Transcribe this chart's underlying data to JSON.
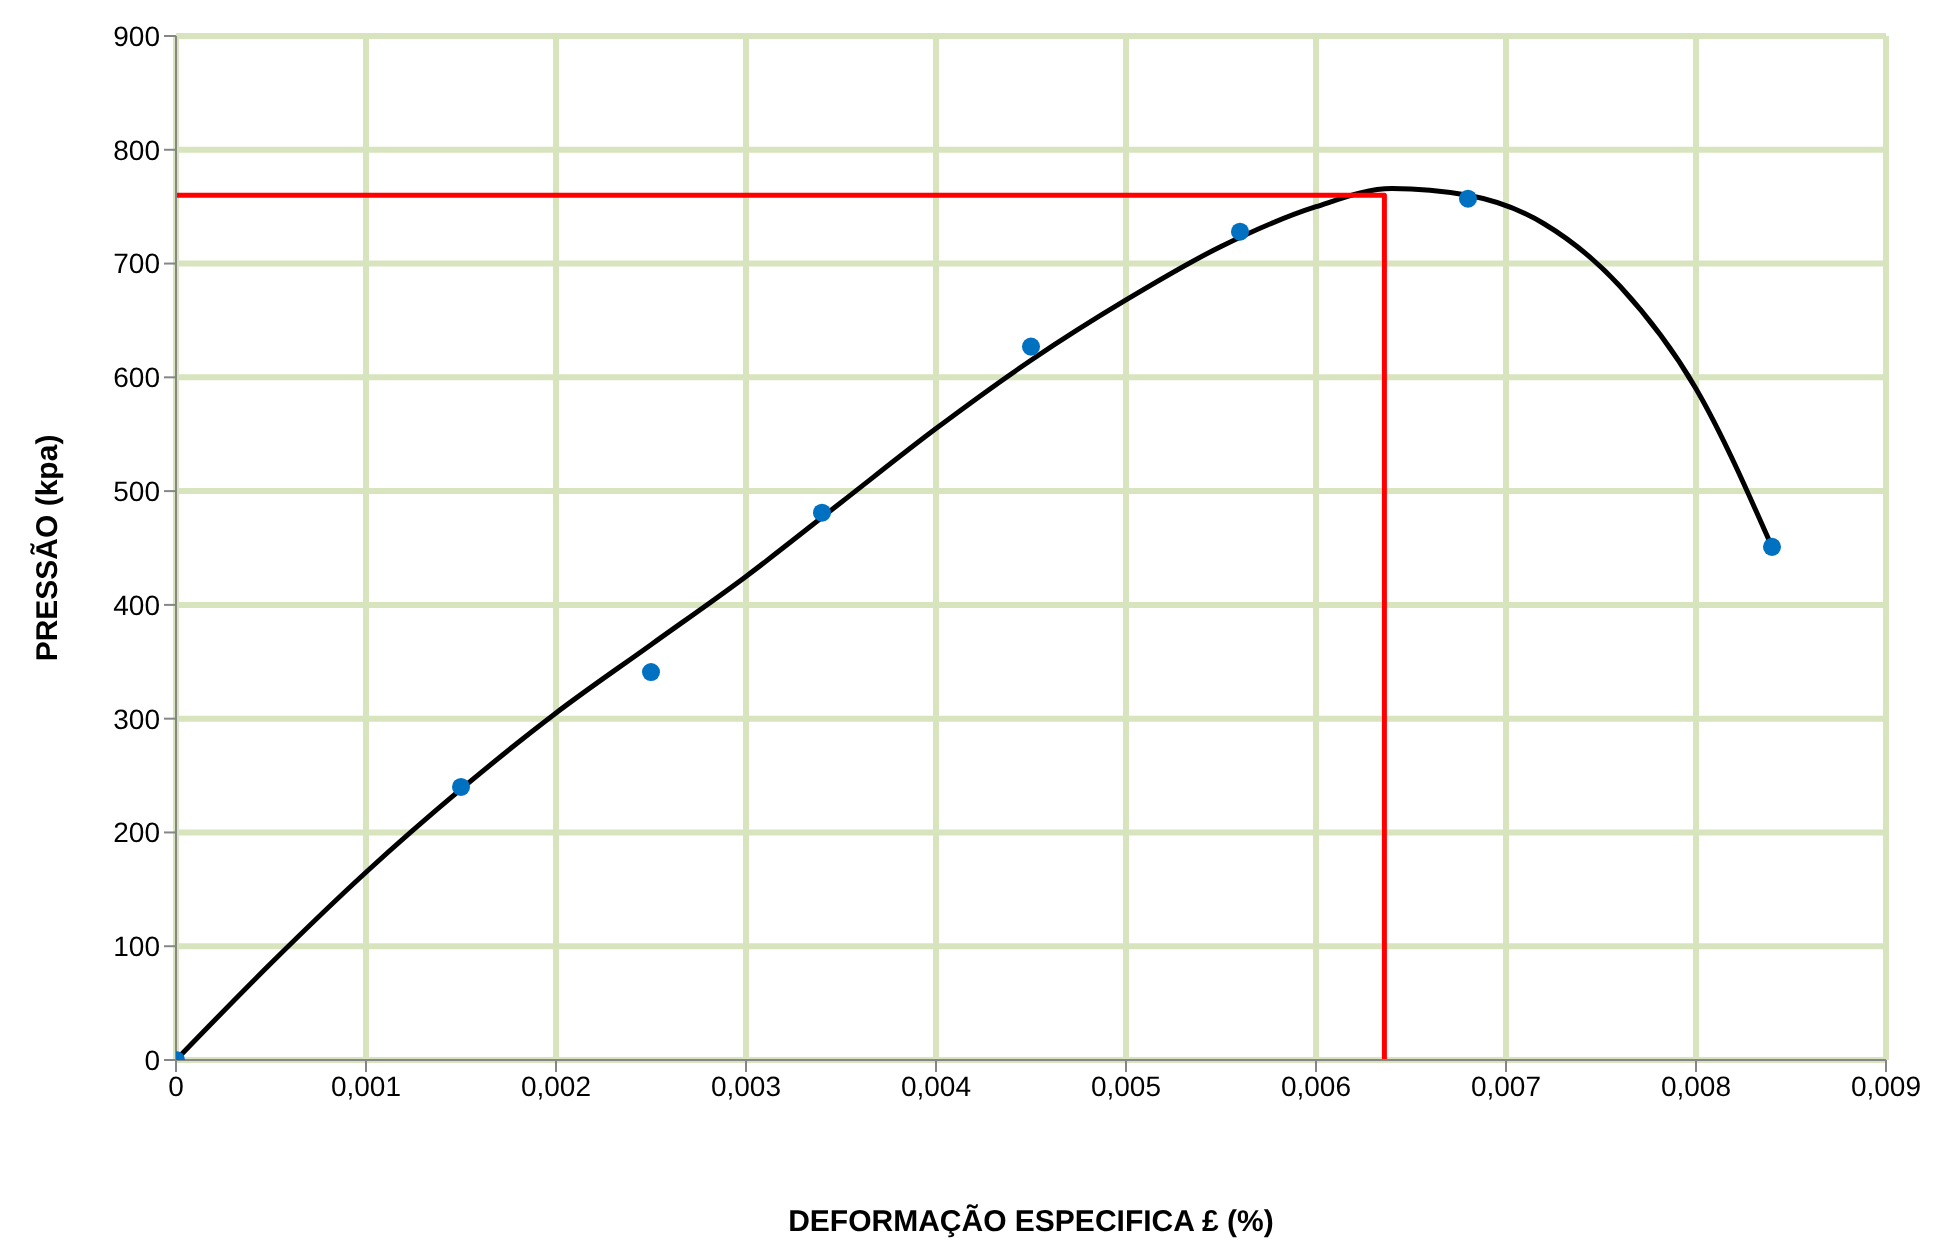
{
  "chart_data": {
    "type": "scatter",
    "xlabel": "DEFORMAÇÃO ESPECIFICA £ (%)",
    "ylabel": "PRESSÃO (kpa)",
    "xlim": [
      0,
      0.009
    ],
    "xticks": [
      {
        "value": 0,
        "label": "0"
      },
      {
        "value": 0.001,
        "label": "0,001"
      },
      {
        "value": 0.002,
        "label": "0,002"
      },
      {
        "value": 0.003,
        "label": "0,003"
      },
      {
        "value": 0.004,
        "label": "0,004"
      },
      {
        "value": 0.005,
        "label": "0,005"
      },
      {
        "value": 0.006,
        "label": "0,006"
      },
      {
        "value": 0.007,
        "label": "0,007"
      },
      {
        "value": 0.008,
        "label": "0,008"
      },
      {
        "value": 0.009,
        "label": "0,009"
      }
    ],
    "ylim": [
      0,
      900
    ],
    "yticks": [
      0,
      100,
      200,
      300,
      400,
      500,
      600,
      700,
      800,
      900
    ],
    "grid": true,
    "marker": "circle",
    "series": [
      {
        "color": "#0070c0",
        "x": [
          0,
          0.0015,
          0.0025,
          0.0034,
          0.0045,
          0.0056,
          0.0068,
          0.0084
        ],
        "values": [
          0,
          240,
          341,
          481,
          627,
          728,
          757,
          451
        ]
      },
      {
        "type": "line",
        "color": "#000000",
        "marker": "none",
        "x": [
          0,
          0.0005,
          0.001,
          0.0015,
          0.002,
          0.0025,
          0.003,
          0.0035,
          0.004,
          0.0045,
          0.005,
          0.0055,
          0.006,
          0.0064,
          0.0068,
          0.0072,
          0.0076,
          0.008,
          0.0084
        ],
        "values": [
          0,
          85,
          165,
          238,
          305,
          365,
          425,
          490,
          555,
          615,
          668,
          715,
          750,
          766,
          760,
          735,
          680,
          590,
          451
        ]
      },
      {
        "type": "line",
        "color": "#ff0000",
        "marker": "none",
        "x": [
          0,
          0.00636,
          0.00636
        ],
        "values": [
          760,
          760,
          0
        ]
      }
    ]
  }
}
